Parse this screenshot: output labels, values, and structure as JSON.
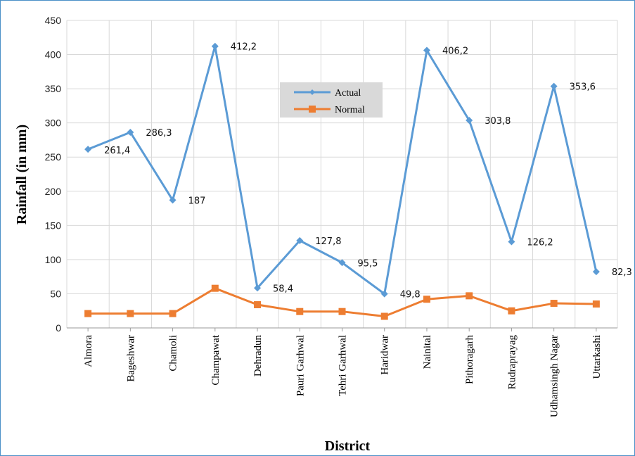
{
  "chart_data": {
    "type": "line",
    "categories": [
      "Almora",
      "Bageshwar",
      "Chamoli",
      "Champawat",
      "Dehradun",
      "Pauri Garhwal",
      "Tehri Garhwal",
      "Haridwar",
      "Nainital",
      "Pithoragarh",
      "Rudraprayag",
      "Udhamsingh Nagar",
      "Uttarkashi"
    ],
    "series": [
      {
        "name": "Actual",
        "color": "#5b9bd5",
        "values": [
          261.4,
          286.3,
          187,
          412.2,
          58.4,
          127.8,
          95.5,
          49.8,
          406.2,
          303.8,
          126.2,
          353.6,
          82.3
        ],
        "labels": [
          "261,4",
          "286,3",
          "187",
          "412,2",
          "58,4",
          "127,8",
          "95,5",
          "49,8",
          "406,2",
          "303,8",
          "126,2",
          "353,6",
          "82,3"
        ]
      },
      {
        "name": "Normal",
        "color": "#ed7d31",
        "values": [
          21,
          21,
          21,
          58,
          34,
          24,
          24,
          17,
          42,
          47,
          25,
          36,
          35
        ]
      }
    ],
    "ylabel": "Rainfall (in mm)",
    "xlabel": "District",
    "ylim": [
      0,
      450
    ],
    "yticks": [
      0,
      50,
      100,
      150,
      200,
      250,
      300,
      350,
      400,
      450
    ],
    "grid": true,
    "legend_position": "top-center"
  }
}
